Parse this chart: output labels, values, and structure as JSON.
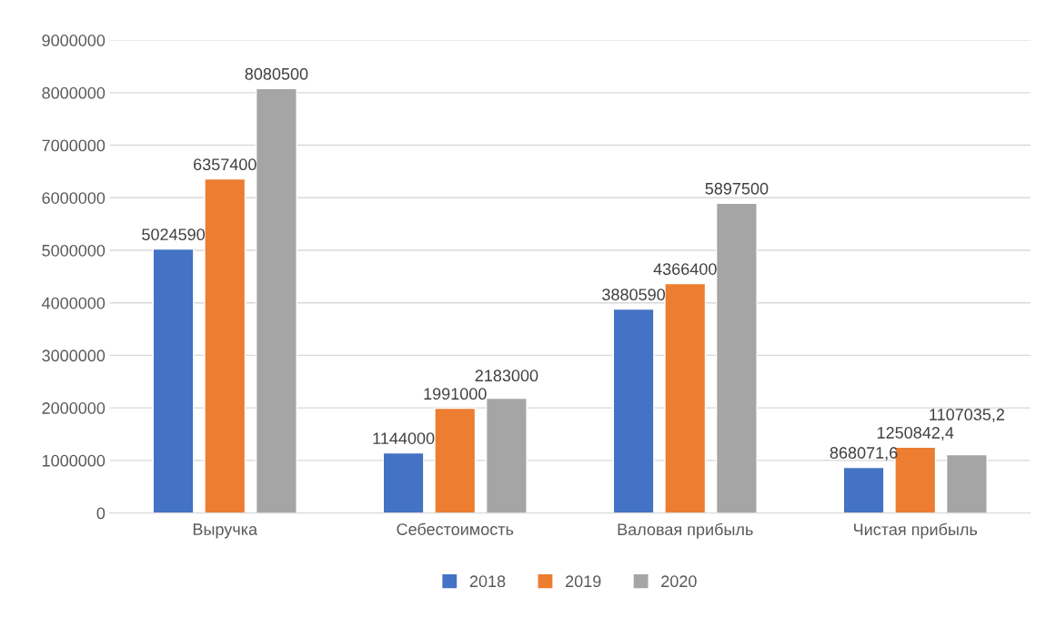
{
  "chart_data": {
    "type": "bar",
    "categories": [
      "Выручка",
      "Себестоимость",
      "Валовая прибыль",
      "Чистая прибыль"
    ],
    "series": [
      {
        "name": "2018",
        "color": "#4472c4",
        "values": [
          5024590,
          1144000,
          3880590,
          868071.6
        ],
        "value_labels": [
          "5024590",
          "1144000",
          "3880590",
          "868071,6"
        ]
      },
      {
        "name": "2019",
        "color": "#ed7d31",
        "values": [
          6357400,
          1991000,
          4366400,
          1250842.4
        ],
        "value_labels": [
          "6357400",
          "1991000",
          "4366400",
          "1250842,4"
        ]
      },
      {
        "name": "2020",
        "color": "#a5a5a5",
        "values": [
          8080500,
          2183000,
          5897500,
          1107035.2
        ],
        "value_labels": [
          "8080500",
          "2183000",
          "5897500",
          "1107035,2"
        ]
      }
    ],
    "ylim": [
      0,
      9000000
    ],
    "yticks": [
      0,
      1000000,
      2000000,
      3000000,
      4000000,
      5000000,
      6000000,
      7000000,
      8000000,
      9000000
    ],
    "grid": "y",
    "legend": "bottom"
  }
}
